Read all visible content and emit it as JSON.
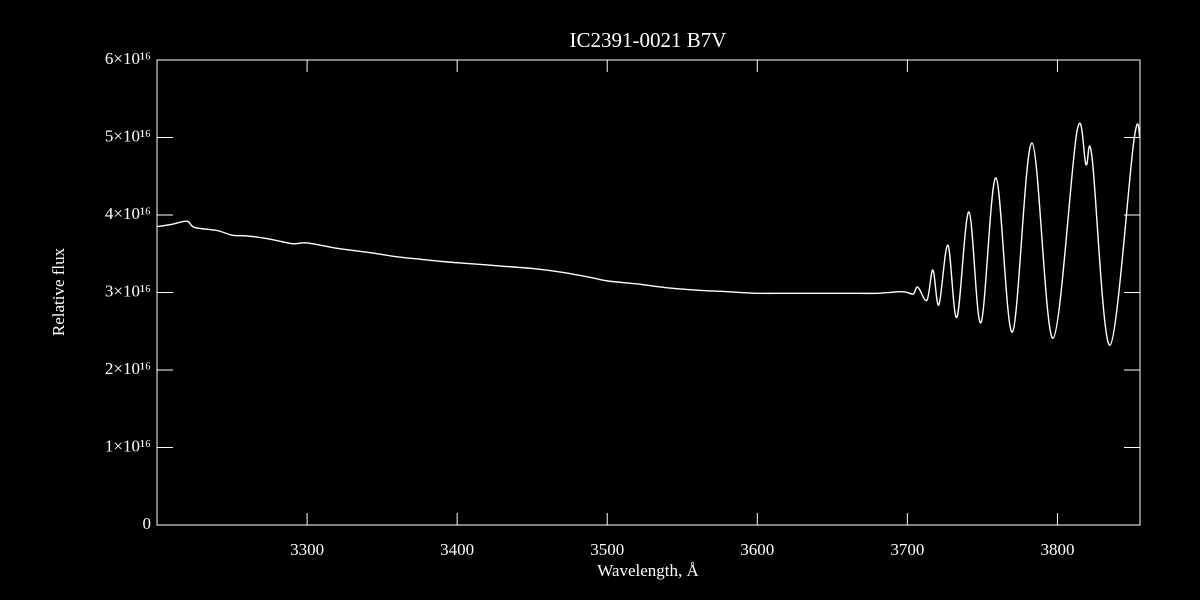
{
  "chart_data": {
    "type": "line",
    "title": "IC2391-0021   B7V",
    "xlabel": "Wavelength, Å",
    "ylabel": "Relative flux",
    "xlim": [
      3200,
      3855
    ],
    "ylim": [
      0,
      6e+16
    ],
    "xticks": [
      3300,
      3400,
      3500,
      3600,
      3700,
      3800
    ],
    "yticks": [
      0,
      {
        "value": 1e+16,
        "label": "1×10¹⁶"
      },
      {
        "value": 2e+16,
        "label": "2×10¹⁶"
      },
      {
        "value": 3e+16,
        "label": "3×10¹⁶"
      },
      {
        "value": 4e+16,
        "label": "4×10¹⁶"
      },
      {
        "value": 5e+16,
        "label": "5×10¹⁶"
      },
      {
        "value": 6e+16,
        "label": "6×10¹⁶"
      }
    ],
    "x": [
      3200,
      3210,
      3220,
      3225,
      3240,
      3250,
      3260,
      3275,
      3290,
      3300,
      3320,
      3340,
      3360,
      3375,
      3390,
      3410,
      3430,
      3450,
      3470,
      3490,
      3500,
      3520,
      3540,
      3560,
      3580,
      3600,
      3620,
      3640,
      3660,
      3680,
      3695,
      3700,
      3704,
      3707,
      3713,
      3717,
      3721,
      3727,
      3733,
      3741,
      3749,
      3759,
      3770,
      3783,
      3797,
      3813,
      3819,
      3823,
      3835,
      3851,
      3855
    ],
    "series": [
      {
        "name": "flux",
        "color": "#ffffff",
        "values": [
          3.85e+16,
          3.88e+16,
          3.92e+16,
          3.84e+16,
          3.8e+16,
          3.74e+16,
          3.73e+16,
          3.69e+16,
          3.63e+16,
          3.64e+16,
          3.57e+16,
          3.52e+16,
          3.46e+16,
          3.43e+16,
          3.4e+16,
          3.37e+16,
          3.34e+16,
          3.31e+16,
          3.26e+16,
          3.19e+16,
          3.15e+16,
          3.11e+16,
          3.06e+16,
          3.03e+16,
          3.01e+16,
          2.99e+16,
          2.99e+16,
          2.99e+16,
          2.99e+16,
          2.99e+16,
          3.01e+16,
          3e+16,
          2.98e+16,
          3.07e+16,
          2.9e+16,
          3.29e+16,
          2.84e+16,
          3.61e+16,
          2.68e+16,
          4.04e+16,
          2.61e+16,
          4.48e+16,
          2.49e+16,
          4.93e+16,
          2.41e+16,
          5.08e+16,
          4.65e+16,
          4.75e+16,
          2.32e+16,
          4.97e+16,
          5e+16
        ]
      }
    ]
  }
}
